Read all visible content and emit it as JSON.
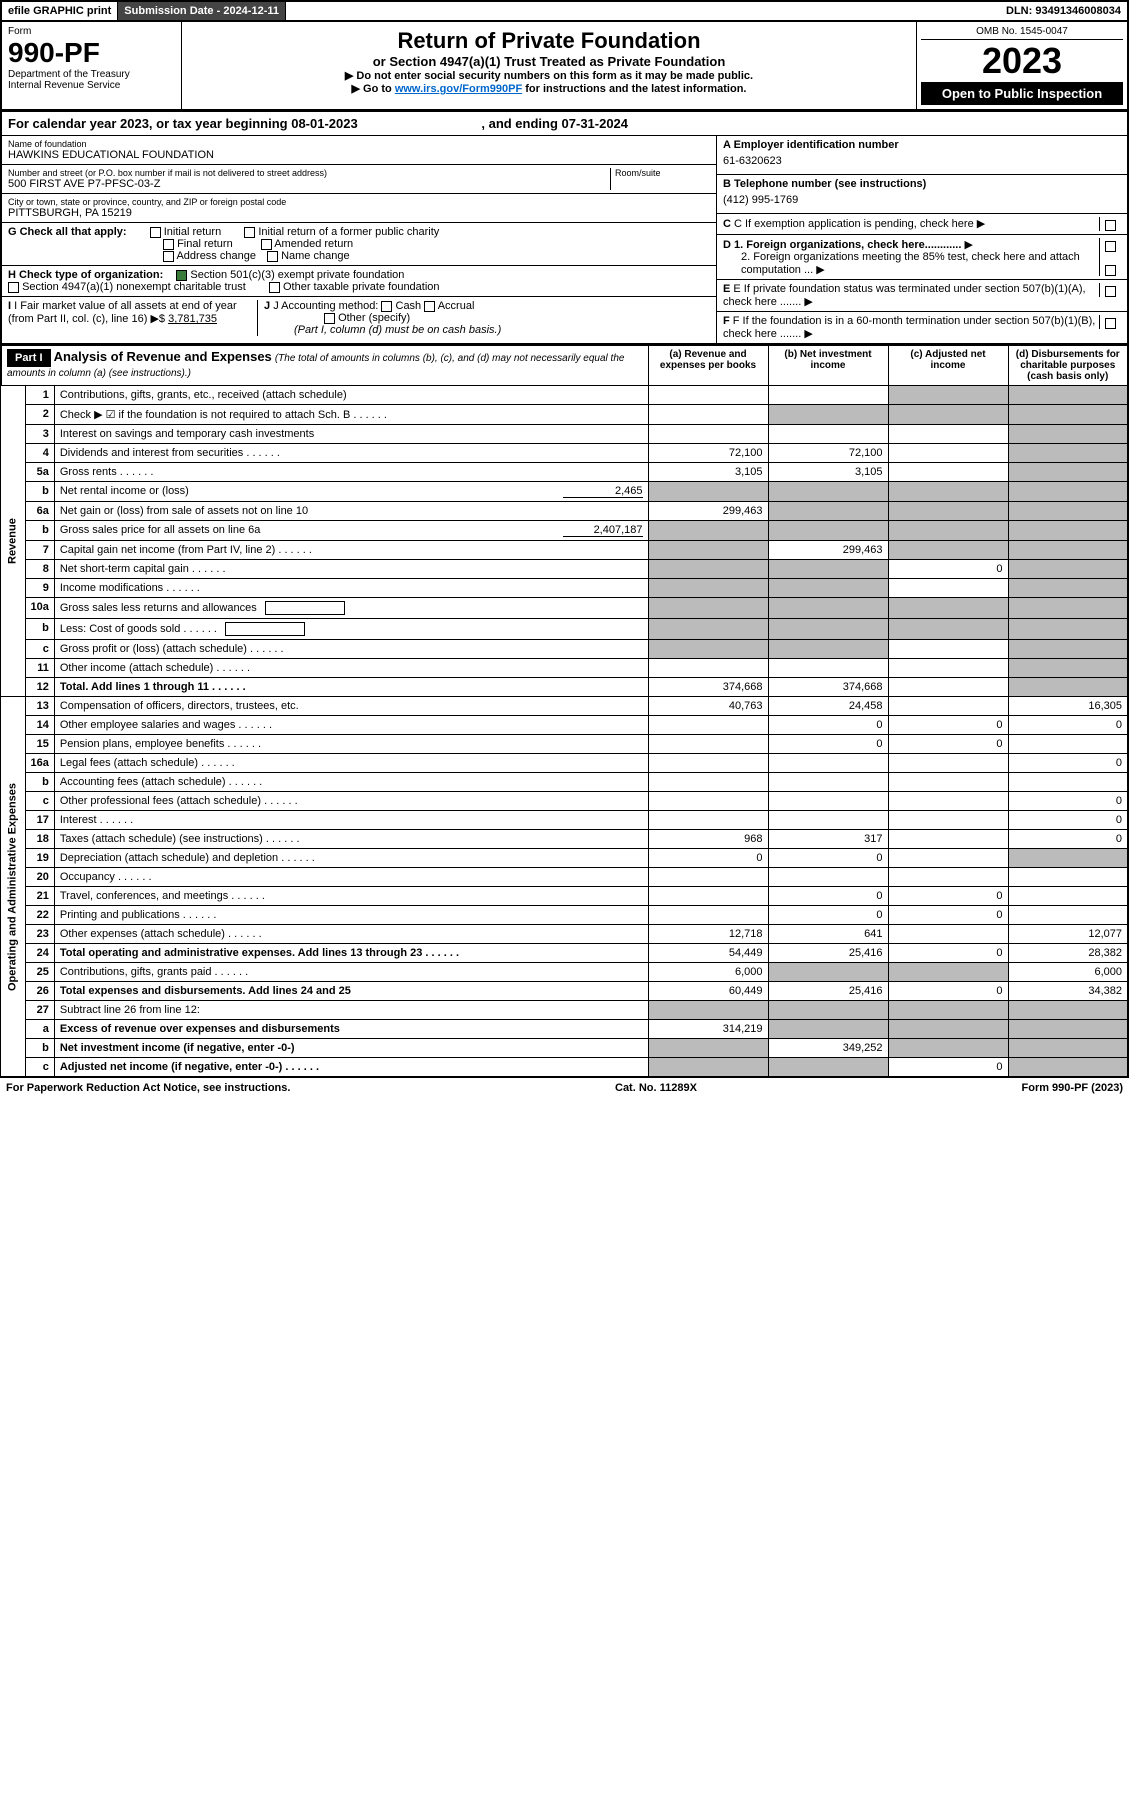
{
  "top": {
    "efile": "efile GRAPHIC print",
    "subdate_lbl": "Submission Date - ",
    "subdate": "2024-12-11",
    "dln_lbl": "DLN: ",
    "dln": "93491346008034"
  },
  "header": {
    "form_word": "Form",
    "form": "990-PF",
    "dept": "Department of the Treasury\nInternal Revenue Service",
    "title": "Return of Private Foundation",
    "subtitle": "or Section 4947(a)(1) Trust Treated as Private Foundation",
    "note1": "▶ Do not enter social security numbers on this form as it may be made public.",
    "note2_pre": "▶ Go to ",
    "note2_link": "www.irs.gov/Form990PF",
    "note2_post": " for instructions and the latest information.",
    "omb": "OMB No. 1545-0047",
    "year": "2023",
    "open": "Open to Public Inspection"
  },
  "cal": {
    "text": "For calendar year 2023, or tax year beginning 08-01-2023",
    "end": ", and ending 07-31-2024"
  },
  "id": {
    "name_lbl": "Name of foundation",
    "name": "HAWKINS EDUCATIONAL FOUNDATION",
    "addr_lbl": "Number and street (or P.O. box number if mail is not delivered to street address)",
    "addr": "500 FIRST AVE P7-PFSC-03-Z",
    "room_lbl": "Room/suite",
    "city_lbl": "City or town, state or province, country, and ZIP or foreign postal code",
    "city": "PITTSBURGH, PA  15219",
    "a_lbl": "A Employer identification number",
    "a_val": "61-6320623",
    "b_lbl": "B Telephone number (see instructions)",
    "b_val": "(412) 995-1769",
    "c_lbl": "C If exemption application is pending, check here",
    "d1": "D 1. Foreign organizations, check here............",
    "d2": "2. Foreign organizations meeting the 85% test, check here and attach computation ...",
    "e_lbl": "E  If private foundation status was terminated under section 507(b)(1)(A), check here .......",
    "f_lbl": "F  If the foundation is in a 60-month termination under section 507(b)(1)(B), check here .......",
    "g_lbl": "G Check all that apply:",
    "g_opts": [
      "Initial return",
      "Final return",
      "Address change",
      "Initial return of a former public charity",
      "Amended return",
      "Name change"
    ],
    "h_lbl": "H Check type of organization:",
    "h1": "Section 501(c)(3) exempt private foundation",
    "h2": "Section 4947(a)(1) nonexempt charitable trust",
    "h3": "Other taxable private foundation",
    "i_lbl": "I Fair market value of all assets at end of year (from Part II, col. (c), line 16)",
    "i_val": "3,781,735",
    "j_lbl": "J Accounting method:",
    "j_opts": [
      "Cash",
      "Accrual",
      "Other (specify)"
    ],
    "j_note": "(Part I, column (d) must be on cash basis.)"
  },
  "part1": {
    "label": "Part I",
    "title": "Analysis of Revenue and Expenses",
    "title_note": "(The total of amounts in columns (b), (c), and (d) may not necessarily equal the amounts in column (a) (see instructions).)",
    "cols": [
      "(a) Revenue and expenses per books",
      "(b) Net investment income",
      "(c) Adjusted net income",
      "(d) Disbursements for charitable purposes (cash basis only)"
    ]
  },
  "side": {
    "rev": "Revenue",
    "exp": "Operating and Administrative Expenses"
  },
  "rows": [
    {
      "n": "1",
      "d": "Contributions, gifts, grants, etc., received (attach schedule)",
      "a": "",
      "b": "",
      "c": "s",
      "dd": "s"
    },
    {
      "n": "2",
      "d": "Check ▶ ☑ if the foundation is not required to attach Sch. B",
      "dots": 1,
      "a": "",
      "b": "s",
      "c": "s",
      "dd": "s"
    },
    {
      "n": "3",
      "d": "Interest on savings and temporary cash investments",
      "a": "",
      "b": "",
      "c": "",
      "dd": "s"
    },
    {
      "n": "4",
      "d": "Dividends and interest from securities",
      "dots": 1,
      "a": "72,100",
      "b": "72,100",
      "c": "",
      "dd": "s"
    },
    {
      "n": "5a",
      "d": "Gross rents",
      "dots": 1,
      "a": "3,105",
      "b": "3,105",
      "c": "",
      "dd": "s"
    },
    {
      "n": "b",
      "d": "Net rental income or (loss)",
      "inline": "2,465",
      "a": "s",
      "b": "s",
      "c": "s",
      "dd": "s"
    },
    {
      "n": "6a",
      "d": "Net gain or (loss) from sale of assets not on line 10",
      "a": "299,463",
      "b": "s",
      "c": "s",
      "dd": "s"
    },
    {
      "n": "b",
      "d": "Gross sales price for all assets on line 6a",
      "inline": "2,407,187",
      "a": "s",
      "b": "s",
      "c": "s",
      "dd": "s"
    },
    {
      "n": "7",
      "d": "Capital gain net income (from Part IV, line 2)",
      "dots": 1,
      "a": "s",
      "b": "299,463",
      "c": "s",
      "dd": "s"
    },
    {
      "n": "8",
      "d": "Net short-term capital gain",
      "dots": 1,
      "a": "s",
      "b": "s",
      "c": "0",
      "dd": "s"
    },
    {
      "n": "9",
      "d": "Income modifications",
      "dots": 1,
      "a": "s",
      "b": "s",
      "c": "",
      "dd": "s"
    },
    {
      "n": "10a",
      "d": "Gross sales less returns and allowances",
      "box": 1,
      "a": "s",
      "b": "s",
      "c": "s",
      "dd": "s"
    },
    {
      "n": "b",
      "d": "Less: Cost of goods sold",
      "dots": 1,
      "box": 1,
      "a": "s",
      "b": "s",
      "c": "s",
      "dd": "s"
    },
    {
      "n": "c",
      "d": "Gross profit or (loss) (attach schedule)",
      "dots": 1,
      "a": "s",
      "b": "s",
      "c": "",
      "dd": "s"
    },
    {
      "n": "11",
      "d": "Other income (attach schedule)",
      "dots": 1,
      "a": "",
      "b": "",
      "c": "",
      "dd": "s"
    },
    {
      "n": "12",
      "d": "Total. Add lines 1 through 11",
      "dots": 1,
      "bold": 1,
      "a": "374,668",
      "b": "374,668",
      "c": "",
      "dd": "s"
    },
    {
      "n": "13",
      "d": "Compensation of officers, directors, trustees, etc.",
      "a": "40,763",
      "b": "24,458",
      "c": "",
      "dd": "16,305"
    },
    {
      "n": "14",
      "d": "Other employee salaries and wages",
      "dots": 1,
      "a": "",
      "b": "0",
      "c": "0",
      "dd": "0"
    },
    {
      "n": "15",
      "d": "Pension plans, employee benefits",
      "dots": 1,
      "a": "",
      "b": "0",
      "c": "0",
      "dd": ""
    },
    {
      "n": "16a",
      "d": "Legal fees (attach schedule)",
      "dots": 1,
      "a": "",
      "b": "",
      "c": "",
      "dd": "0"
    },
    {
      "n": "b",
      "d": "Accounting fees (attach schedule)",
      "dots": 1,
      "a": "",
      "b": "",
      "c": "",
      "dd": ""
    },
    {
      "n": "c",
      "d": "Other professional fees (attach schedule)",
      "dots": 1,
      "a": "",
      "b": "",
      "c": "",
      "dd": "0"
    },
    {
      "n": "17",
      "d": "Interest",
      "dots": 1,
      "a": "",
      "b": "",
      "c": "",
      "dd": "0"
    },
    {
      "n": "18",
      "d": "Taxes (attach schedule) (see instructions)",
      "dots": 1,
      "a": "968",
      "b": "317",
      "c": "",
      "dd": "0"
    },
    {
      "n": "19",
      "d": "Depreciation (attach schedule) and depletion",
      "dots": 1,
      "a": "0",
      "b": "0",
      "c": "",
      "dd": "s"
    },
    {
      "n": "20",
      "d": "Occupancy",
      "dots": 1,
      "a": "",
      "b": "",
      "c": "",
      "dd": ""
    },
    {
      "n": "21",
      "d": "Travel, conferences, and meetings",
      "dots": 1,
      "a": "",
      "b": "0",
      "c": "0",
      "dd": ""
    },
    {
      "n": "22",
      "d": "Printing and publications",
      "dots": 1,
      "a": "",
      "b": "0",
      "c": "0",
      "dd": ""
    },
    {
      "n": "23",
      "d": "Other expenses (attach schedule)",
      "dots": 1,
      "a": "12,718",
      "b": "641",
      "c": "",
      "dd": "12,077"
    },
    {
      "n": "24",
      "d": "Total operating and administrative expenses. Add lines 13 through 23",
      "dots": 1,
      "bold": 1,
      "a": "54,449",
      "b": "25,416",
      "c": "0",
      "dd": "28,382"
    },
    {
      "n": "25",
      "d": "Contributions, gifts, grants paid",
      "dots": 1,
      "a": "6,000",
      "b": "s",
      "c": "s",
      "dd": "6,000"
    },
    {
      "n": "26",
      "d": "Total expenses and disbursements. Add lines 24 and 25",
      "bold": 1,
      "a": "60,449",
      "b": "25,416",
      "c": "0",
      "dd": "34,382"
    },
    {
      "n": "27",
      "d": "Subtract line 26 from line 12:",
      "a": "s",
      "b": "s",
      "c": "s",
      "dd": "s"
    },
    {
      "n": "a",
      "d": "Excess of revenue over expenses and disbursements",
      "bold": 1,
      "a": "314,219",
      "b": "s",
      "c": "s",
      "dd": "s"
    },
    {
      "n": "b",
      "d": "Net investment income (if negative, enter -0-)",
      "bold": 1,
      "a": "s",
      "b": "349,252",
      "c": "s",
      "dd": "s"
    },
    {
      "n": "c",
      "d": "Adjusted net income (if negative, enter -0-)",
      "dots": 1,
      "bold": 1,
      "a": "s",
      "b": "s",
      "c": "0",
      "dd": "s"
    }
  ],
  "footer": {
    "left": "For Paperwork Reduction Act Notice, see instructions.",
    "mid": "Cat. No. 11289X",
    "right": "Form 990-PF (2023)"
  }
}
